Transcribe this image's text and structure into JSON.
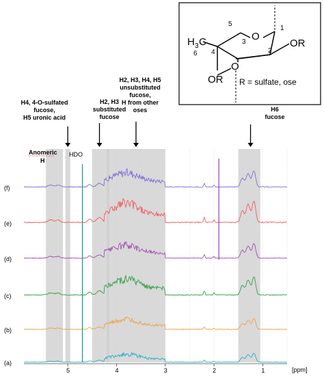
{
  "figure_type": "stacked 1H NMR spectra",
  "chart_data": {
    "type": "line",
    "title": "",
    "xlabel": "[ppm]",
    "ylabel": "",
    "x_reversed": true,
    "xlim": [
      5.9,
      0.5
    ],
    "x_ticks": [
      "5",
      "4",
      "3",
      "2",
      "1"
    ],
    "x_tick_values": [
      5,
      4,
      3,
      2,
      1
    ],
    "grid": true,
    "series": [
      {
        "name": "(f)",
        "color": "#7b6fd6"
      },
      {
        "name": "(e)",
        "color": "#f25a5a"
      },
      {
        "name": "(d)",
        "color": "#a24db0"
      },
      {
        "name": "(c)",
        "color": "#2f9e44"
      },
      {
        "name": "(b)",
        "color": "#f0a04b"
      },
      {
        "name": "(a)",
        "color": "#1fb0c6"
      }
    ],
    "peaks_ppm": {
      "hdo": 4.7,
      "anomeric_region": [
        5.5,
        4.95
      ],
      "h2_h3_substituted_region": [
        4.5,
        4.1
      ],
      "ring_proton_region": [
        4.2,
        3.0
      ],
      "h6_fucose_region": [
        1.5,
        1.0
      ],
      "sharp_peak": 1.9
    },
    "shaded_regions": [
      {
        "from": 5.45,
        "to": 5.1,
        "label": "Anomeric H"
      },
      {
        "from": 5.05,
        "to": 4.95,
        "label": ""
      },
      {
        "from": 4.5,
        "to": 4.25,
        "label": ""
      },
      {
        "from": 4.25,
        "to": 4.15,
        "label": ""
      },
      {
        "from": 4.2,
        "to": 3.0,
        "label": ""
      },
      {
        "from": 1.5,
        "to": 1.05,
        "label": ""
      }
    ],
    "annotations": [
      {
        "lines": [
          "H4, 4-O-sulfated",
          "fucose,",
          "H5 uronic acid"
        ],
        "ppm": 5.0
      },
      {
        "lines": [
          "H2, H3",
          "substituted",
          "fucose"
        ],
        "ppm": 4.35
      },
      {
        "lines": [
          "H2, H3, H4, H5",
          "unsubstituted",
          "fucose,",
          "H from other",
          "oses"
        ],
        "ppm": 3.6
      },
      {
        "lines": [
          "H6",
          "fucose"
        ],
        "ppm": 1.25
      }
    ],
    "shaded_label": {
      "lines": [
        "Anomeric",
        "H"
      ]
    },
    "hdo_label": "HDO"
  },
  "inset": {
    "structure": "fucose ring",
    "atom_numbers": [
      "1",
      "2",
      "3",
      "4",
      "5",
      "6"
    ],
    "ring_oxygen": "O",
    "substituent_or_right": "OR",
    "substituent_or_left": "OR",
    "substituent_o": "O",
    "methyl": "H3C",
    "methyl_h": "H",
    "methyl_sub": "3",
    "methyl_c": "C",
    "legend_r": "R = sulfate, ose"
  },
  "colors": {
    "shading": "#cccccc",
    "grid": "#cccccc",
    "hdo_peak": "#1f9d8f",
    "sharp_peak": "#8b2fb3"
  }
}
